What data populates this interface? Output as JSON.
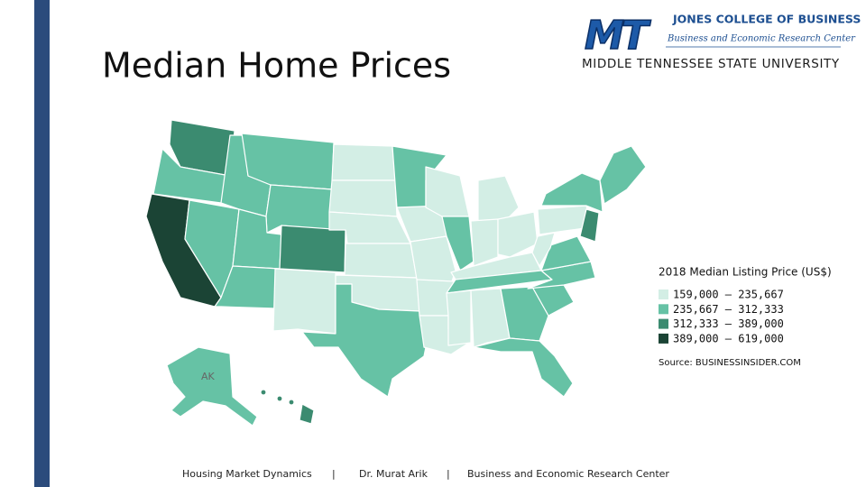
{
  "title": "Median Home Prices",
  "logo": {
    "mark": "MT",
    "college": "JONES COLLEGE OF BUSINESS",
    "center": "Business and Economic Research Center",
    "university": "MIDDLE TENNESSEE STATE UNIVERSITY"
  },
  "map": {
    "alaska_label": "AK"
  },
  "legend": {
    "title": "2018 Median Listing Price (US$)",
    "items": [
      {
        "label": "159,000 – 235,667",
        "color": "#d3eee5"
      },
      {
        "label": "235,667 – 312,333",
        "color": "#66c2a5"
      },
      {
        "label": "312,333 – 389,000",
        "color": "#3b8b70"
      },
      {
        "label": "389,000 – 619,000",
        "color": "#1b4435"
      }
    ]
  },
  "source": "Source: BUSINESSINSIDER.COM",
  "footer": {
    "left": "Housing Market Dynamics",
    "sep1": "|",
    "middle": "Dr. Murat Arik",
    "sep2": "|",
    "right": "Business and Economic Research Center"
  }
}
